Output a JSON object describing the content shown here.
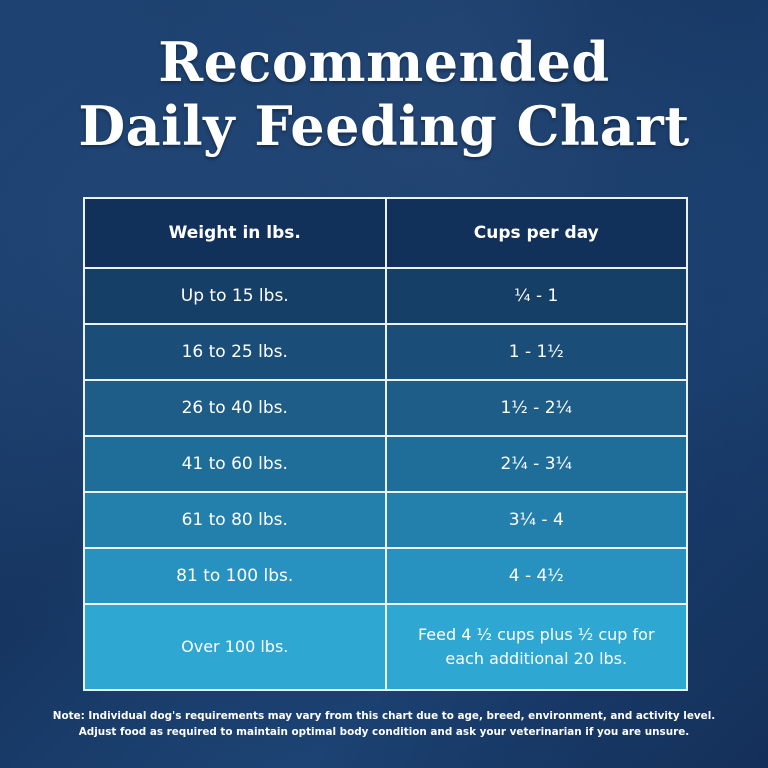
{
  "title": {
    "line1": "Recommended",
    "line2": "Daily Feeding Chart"
  },
  "chart_data": {
    "type": "table",
    "columns": [
      "Weight in lbs.",
      "Cups per day"
    ],
    "rows": [
      {
        "weight": "Up to 15 lbs.",
        "cups": "¼ - 1",
        "color": "#163f68"
      },
      {
        "weight": "16 to 25 lbs.",
        "cups": "1 - 1½",
        "color": "#1a4e78"
      },
      {
        "weight": "26 to 40 lbs.",
        "cups": "1½ - 2¼",
        "color": "#1d5d88"
      },
      {
        "weight": "41 to 60 lbs.",
        "cups": "2¼ - 3¼",
        "color": "#1f6d99"
      },
      {
        "weight": "61 to 80 lbs.",
        "cups": "3¼ - 4",
        "color": "#2380ad"
      },
      {
        "weight": "81 to 100 lbs.",
        "cups": "4 - 4½",
        "color": "#2792bf"
      },
      {
        "weight": "Over 100 lbs.",
        "cups": "Feed 4 ½ cups plus ½ cup for each additional 20 lbs.",
        "color": "#2ea7d3"
      }
    ],
    "header_color": "#11305a"
  },
  "note": {
    "line1": "Note: Individual dog's requirements may vary from this chart due to age, breed, environment, and activity level.",
    "line2": "Adjust food as required to maintain optimal body condition and ask your veterinarian if you are unsure."
  }
}
